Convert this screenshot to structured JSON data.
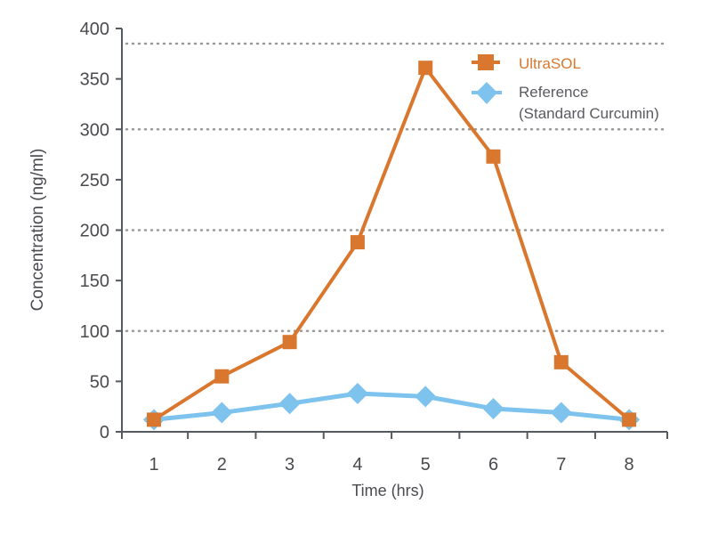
{
  "chart_data": {
    "type": "line",
    "xlabel": "Time (hrs)",
    "ylabel": "Concentration (ng/ml)",
    "categories": [
      "1",
      "2",
      "3",
      "4",
      "5",
      "6",
      "7",
      "8"
    ],
    "ylim": [
      0,
      400
    ],
    "yticks": [
      0,
      50,
      100,
      150,
      200,
      250,
      300,
      350,
      400
    ],
    "grid": {
      "style": "dotted",
      "values": [
        100,
        200,
        300,
        385
      ]
    },
    "legend_position": "top-right",
    "series": [
      {
        "name": "UltraSOL",
        "marker": "square",
        "color": "#D9772F",
        "values": [
          12,
          55,
          89,
          188,
          361,
          273,
          69,
          12
        ]
      },
      {
        "name": "Reference",
        "name_line2": "(Standard Curcumin)",
        "marker": "diamond",
        "color": "#7DC3EE",
        "values": [
          12,
          19,
          28,
          38,
          35,
          23,
          19,
          12
        ]
      }
    ]
  }
}
